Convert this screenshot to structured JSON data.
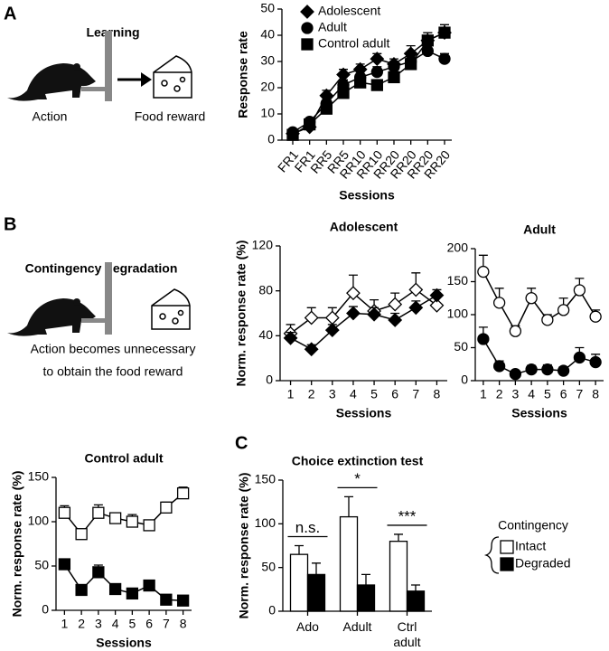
{
  "panel_labels": [
    "A",
    "B",
    "C"
  ],
  "learning": {
    "title": "Learning",
    "action": "Action",
    "reward": "Food reward"
  },
  "degradation": {
    "title": "Contingency degradation",
    "caption": [
      "Action becomes unnecessary",
      "to obtain the food reward"
    ]
  },
  "chart_data": [
    {
      "type": "line",
      "categories": [
        "FR1",
        "FR1",
        "RR5",
        "RR5",
        "RR10",
        "RR10",
        "RR20",
        "RR20",
        "RR20",
        "RR20"
      ],
      "xlabel": "Sessions",
      "ylabel": "Response rate",
      "ylim": [
        0,
        50
      ],
      "yticks": [
        0,
        10,
        20,
        30,
        40,
        50
      ],
      "legend": "upper left",
      "series": [
        {
          "name": "Adolescent",
          "marker": "diamond",
          "color": "#000000",
          "values": [
            2.5,
            5,
            17,
            25,
            27,
            31,
            29,
            33,
            38,
            41
          ],
          "errors": [
            1,
            1,
            2,
            2,
            2,
            2,
            2,
            3,
            3,
            3
          ]
        },
        {
          "name": "Adult",
          "marker": "circle",
          "color": "#000000",
          "values": [
            3,
            7,
            14,
            21,
            24,
            26,
            28,
            30,
            34,
            31
          ],
          "errors": [
            1,
            1,
            2,
            2,
            2,
            2,
            2,
            2,
            2,
            2
          ]
        },
        {
          "name": "Control adult",
          "marker": "square",
          "color": "#000000",
          "values": [
            2,
            6,
            12,
            18,
            22,
            21,
            24,
            29,
            38,
            41
          ],
          "errors": [
            1,
            1,
            2,
            2,
            2,
            2,
            2,
            2,
            3,
            3
          ]
        }
      ]
    },
    {
      "type": "line",
      "title": "Adolescent",
      "x": [
        1,
        2,
        3,
        4,
        5,
        6,
        7,
        8
      ],
      "xlim": [
        0.5,
        8.5
      ],
      "xticks": [
        1,
        2,
        3,
        4,
        5,
        6,
        7,
        8
      ],
      "xlabel": "Sessions",
      "ylabel": "Norm. response rate (%)",
      "ylim": [
        0,
        120
      ],
      "yticks": [
        0,
        40,
        80,
        120
      ],
      "series": [
        {
          "name": "Intact",
          "marker": "diamond",
          "color": "#ffffff",
          "values": [
            42,
            56,
            56,
            78,
            62,
            68,
            81,
            67
          ],
          "errors": [
            8,
            9,
            9,
            16,
            10,
            10,
            15,
            10
          ]
        },
        {
          "name": "Degraded",
          "marker": "diamond",
          "color": "#000000",
          "values": [
            38,
            28,
            45,
            60,
            59,
            54,
            65,
            76
          ],
          "errors": [
            5,
            4,
            5,
            6,
            6,
            6,
            6,
            5
          ]
        }
      ]
    },
    {
      "type": "line",
      "title": "Adult",
      "x": [
        1,
        2,
        3,
        4,
        5,
        6,
        7,
        8
      ],
      "xlim": [
        0.5,
        8.5
      ],
      "xticks": [
        1,
        2,
        3,
        4,
        5,
        6,
        7,
        8
      ],
      "xlabel": "Sessions",
      "ylim": [
        0,
        200
      ],
      "yticks": [
        0,
        50,
        100,
        150,
        200
      ],
      "series": [
        {
          "name": "Intact",
          "marker": "circle",
          "color": "#ffffff",
          "values": [
            165,
            118,
            75,
            125,
            92,
            107,
            137,
            97
          ],
          "errors": [
            25,
            22,
            8,
            15,
            8,
            18,
            18,
            10
          ]
        },
        {
          "name": "Degraded",
          "marker": "circle",
          "color": "#000000",
          "values": [
            63,
            22,
            10,
            17,
            17,
            15,
            35,
            28
          ],
          "errors": [
            18,
            8,
            4,
            6,
            7,
            6,
            15,
            12
          ]
        }
      ]
    },
    {
      "type": "line",
      "title": "Control adult",
      "x": [
        1,
        2,
        3,
        4,
        5,
        6,
        7,
        8
      ],
      "xlim": [
        0.5,
        8.5
      ],
      "xticks": [
        1,
        2,
        3,
        4,
        5,
        6,
        7,
        8
      ],
      "xlabel": "Sessions",
      "ylabel": "Norm. response rate (%)",
      "ylim": [
        0,
        150
      ],
      "yticks": [
        0,
        50,
        100,
        150
      ],
      "series": [
        {
          "name": "Intact",
          "marker": "square",
          "color": "#ffffff",
          "values": [
            110,
            86,
            110,
            104,
            100,
            96,
            116,
            132
          ],
          "errors": [
            8,
            4,
            9,
            6,
            8,
            5,
            6,
            7
          ]
        },
        {
          "name": "Degraded",
          "marker": "square",
          "color": "#000000",
          "values": [
            52,
            23,
            43,
            24,
            19,
            28,
            12,
            11
          ],
          "errors": [
            4,
            5,
            8,
            5,
            4,
            4,
            4,
            3
          ]
        }
      ]
    },
    {
      "type": "bar",
      "title": "Choice extinction test",
      "categories": [
        "Ado",
        "Adult",
        "Ctrl adult"
      ],
      "ylabel": "Norm. response rate (%)",
      "ylim": [
        0,
        150
      ],
      "yticks": [
        0,
        50,
        100,
        150
      ],
      "annotations": [
        "n.s.",
        "*",
        "***"
      ],
      "legend_title": "Contingency",
      "series": [
        {
          "name": "Intact",
          "color": "#ffffff",
          "values": [
            65,
            108,
            80
          ],
          "errors": [
            10,
            23,
            8
          ]
        },
        {
          "name": "Degraded",
          "color": "#000000",
          "values": [
            42,
            30,
            23
          ],
          "errors": [
            13,
            12,
            7
          ]
        }
      ]
    }
  ]
}
